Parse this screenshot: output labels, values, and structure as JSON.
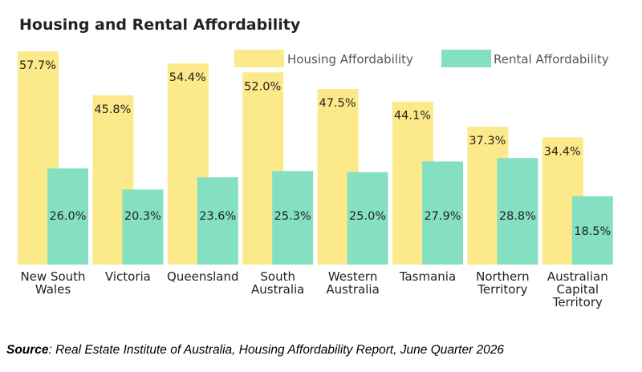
{
  "chart_data": {
    "type": "bar",
    "title": "Housing and Rental Affordability",
    "categories": [
      [
        "New South",
        "Wales"
      ],
      [
        "Victoria"
      ],
      [
        "Queensland"
      ],
      [
        "South",
        "Australia"
      ],
      [
        "Western",
        "Australia"
      ],
      [
        "Tasmania"
      ],
      [
        "Northern",
        "Territory"
      ],
      [
        "Australian",
        "Capital",
        "Territory"
      ]
    ],
    "series": [
      {
        "name": "Housing Affordability",
        "color": "#fce98a",
        "values": [
          57.7,
          45.8,
          54.4,
          52.0,
          47.5,
          44.1,
          37.3,
          34.4
        ],
        "labels": [
          "57.7%",
          "45.8%",
          "54.4%",
          "52.0%",
          "47.5%",
          "44.1%",
          "37.3%",
          "34.4%"
        ]
      },
      {
        "name": "Rental Affordability",
        "color": "#84e0c0",
        "values": [
          26.0,
          20.3,
          23.6,
          25.3,
          25.0,
          27.9,
          28.8,
          18.5
        ],
        "labels": [
          "26.0%",
          "20.3%",
          "23.6%",
          "25.3%",
          "25.0%",
          "27.9%",
          "28.8%",
          "18.5%"
        ]
      }
    ],
    "ylim": [
      0,
      60
    ],
    "grid": false,
    "legend": "top-right"
  },
  "source": {
    "label": "Source",
    "text": ": Real Estate Institute of Australia, Housing Affordability Report, June Quarter 2026"
  }
}
